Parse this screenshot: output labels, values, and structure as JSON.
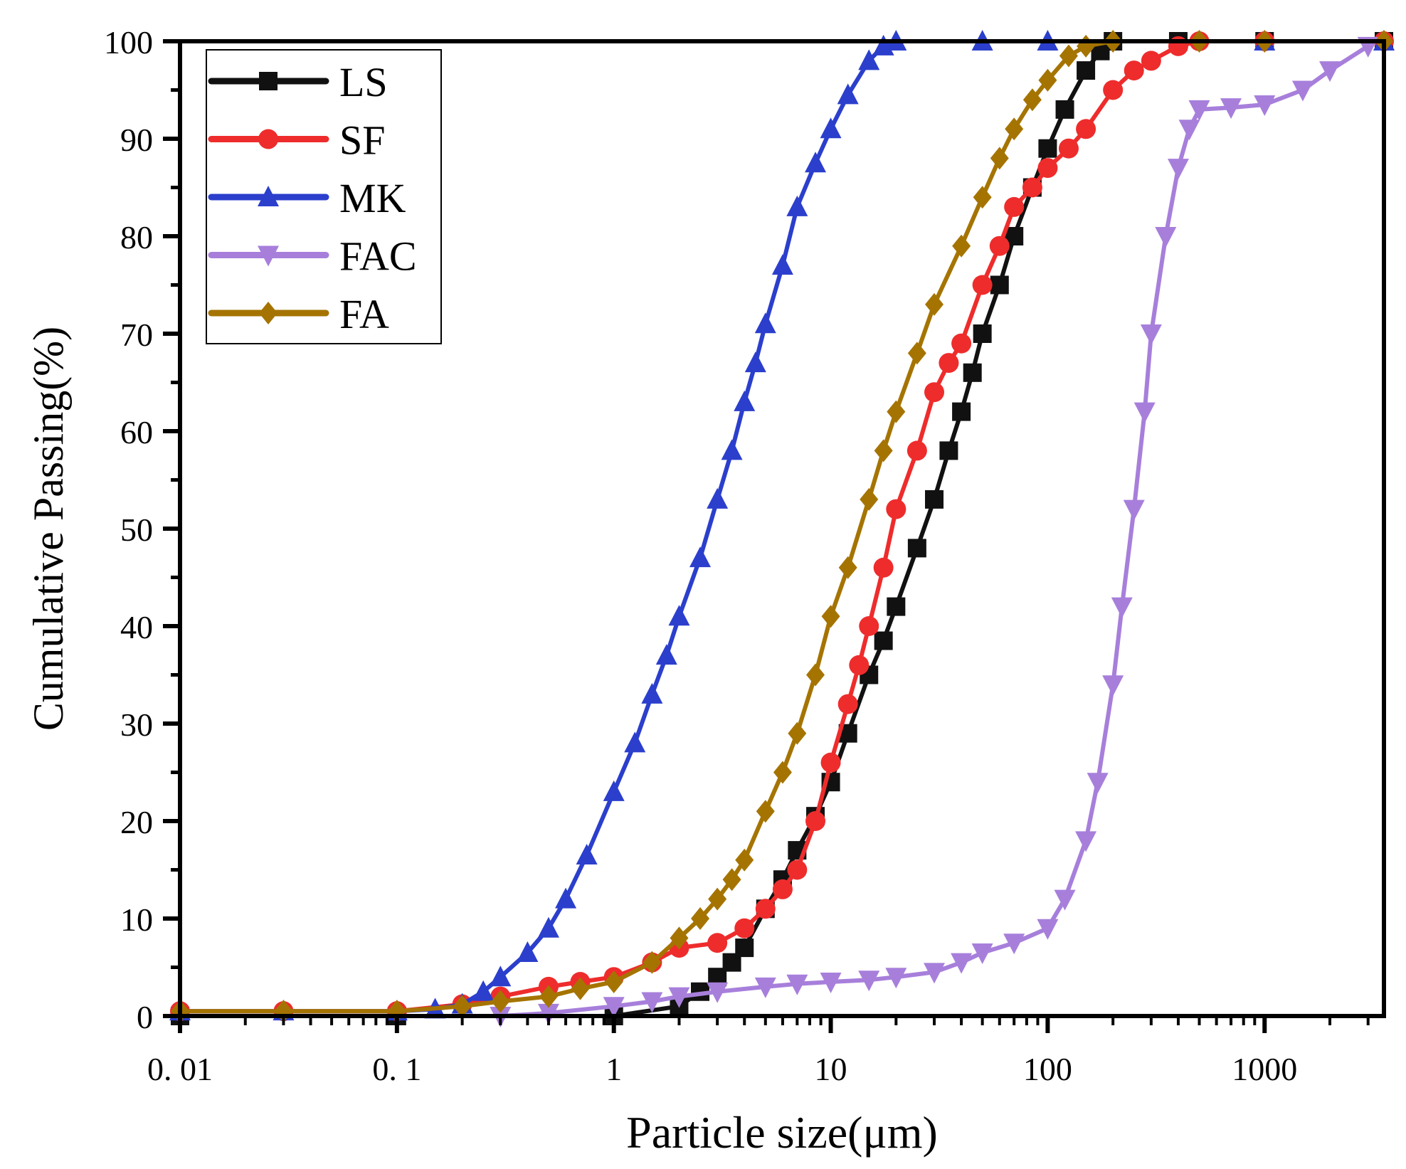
{
  "chart_data": {
    "type": "line",
    "title": "",
    "xlabel": "Particle size(μm)",
    "ylabel": "Cumulative Passing(%)",
    "xscale": "log",
    "xlim": [
      0.01,
      3550
    ],
    "ylim": [
      0,
      100
    ],
    "x_ticks": [
      0.01,
      0.1,
      1,
      10,
      100,
      1000
    ],
    "x_tick_labels": [
      "0. 01",
      "0. 1",
      "1",
      "10",
      "100",
      "1000"
    ],
    "y_ticks": [
      0,
      10,
      20,
      30,
      40,
      50,
      60,
      70,
      80,
      90,
      100
    ],
    "y_tick_labels": [
      "0",
      "10",
      "20",
      "30",
      "40",
      "50",
      "60",
      "70",
      "80",
      "90",
      "100"
    ],
    "grid": false,
    "legend_position": "top-left",
    "series": [
      {
        "name": "LS",
        "color": "#111111",
        "marker": "square",
        "points": [
          [
            0.01,
            0
          ],
          [
            0.1,
            0
          ],
          [
            1,
            0
          ],
          [
            2,
            1
          ],
          [
            2.5,
            2.5
          ],
          [
            3,
            4
          ],
          [
            3.5,
            5.5
          ],
          [
            4,
            7
          ],
          [
            5,
            11
          ],
          [
            6,
            14
          ],
          [
            7,
            17
          ],
          [
            8.5,
            20.5
          ],
          [
            10,
            24
          ],
          [
            12,
            29
          ],
          [
            15,
            35
          ],
          [
            17.5,
            38.5
          ],
          [
            20,
            42
          ],
          [
            25,
            48
          ],
          [
            30,
            53
          ],
          [
            35,
            58
          ],
          [
            40,
            62
          ],
          [
            45,
            66
          ],
          [
            50,
            70
          ],
          [
            60,
            75
          ],
          [
            70,
            80
          ],
          [
            85,
            85
          ],
          [
            100,
            89
          ],
          [
            120,
            93
          ],
          [
            150,
            97
          ],
          [
            175,
            99
          ],
          [
            200,
            100
          ],
          [
            400,
            100
          ],
          [
            1000,
            100
          ],
          [
            3550,
            100
          ]
        ]
      },
      {
        "name": "SF",
        "color": "#ee2c2c",
        "marker": "circle",
        "points": [
          [
            0.01,
            0.5
          ],
          [
            0.03,
            0.5
          ],
          [
            0.1,
            0.5
          ],
          [
            0.2,
            1.2
          ],
          [
            0.3,
            2
          ],
          [
            0.5,
            3
          ],
          [
            0.7,
            3.5
          ],
          [
            1,
            4
          ],
          [
            1.5,
            5.5
          ],
          [
            2,
            7
          ],
          [
            3,
            7.5
          ],
          [
            4,
            9
          ],
          [
            5,
            11
          ],
          [
            6,
            13
          ],
          [
            7,
            15
          ],
          [
            8.5,
            20
          ],
          [
            10,
            26
          ],
          [
            12,
            32
          ],
          [
            13.5,
            36
          ],
          [
            15,
            40
          ],
          [
            17.5,
            46
          ],
          [
            20,
            52
          ],
          [
            25,
            58
          ],
          [
            30,
            64
          ],
          [
            35,
            67
          ],
          [
            40,
            69
          ],
          [
            50,
            75
          ],
          [
            60,
            79
          ],
          [
            70,
            83
          ],
          [
            85,
            85
          ],
          [
            100,
            87
          ],
          [
            125,
            89
          ],
          [
            150,
            91
          ],
          [
            200,
            95
          ],
          [
            250,
            97
          ],
          [
            300,
            98
          ],
          [
            400,
            99.5
          ],
          [
            500,
            100
          ],
          [
            1000,
            100
          ],
          [
            3550,
            100
          ]
        ]
      },
      {
        "name": "MK",
        "color": "#2b3fcc",
        "marker": "triangle-up",
        "points": [
          [
            0.01,
            0.5
          ],
          [
            0.03,
            0.5
          ],
          [
            0.1,
            0.5
          ],
          [
            0.15,
            0.7
          ],
          [
            0.2,
            1.2
          ],
          [
            0.25,
            2.5
          ],
          [
            0.3,
            4
          ],
          [
            0.4,
            6.5
          ],
          [
            0.5,
            9
          ],
          [
            0.6,
            12
          ],
          [
            0.75,
            16.5
          ],
          [
            1,
            23
          ],
          [
            1.25,
            28
          ],
          [
            1.5,
            33
          ],
          [
            1.75,
            37
          ],
          [
            2,
            41
          ],
          [
            2.5,
            47
          ],
          [
            3,
            53
          ],
          [
            3.5,
            58
          ],
          [
            4,
            63
          ],
          [
            4.5,
            67
          ],
          [
            5,
            71
          ],
          [
            6,
            77
          ],
          [
            7,
            83
          ],
          [
            8.5,
            87.5
          ],
          [
            10,
            91
          ],
          [
            12,
            94.5
          ],
          [
            15,
            98
          ],
          [
            17.5,
            99.5
          ],
          [
            20,
            100
          ],
          [
            50,
            100
          ],
          [
            100,
            100
          ],
          [
            1000,
            100
          ],
          [
            3550,
            100
          ]
        ]
      },
      {
        "name": "FAC",
        "color": "#a77fdb",
        "marker": "triangle-down",
        "points": [
          [
            0.3,
            0
          ],
          [
            0.5,
            0.3
          ],
          [
            1,
            1
          ],
          [
            1.5,
            1.5
          ],
          [
            2,
            2
          ],
          [
            3,
            2.5
          ],
          [
            5,
            3
          ],
          [
            7,
            3.3
          ],
          [
            10,
            3.5
          ],
          [
            15,
            3.7
          ],
          [
            20,
            4
          ],
          [
            30,
            4.5
          ],
          [
            40,
            5.5
          ],
          [
            50,
            6.5
          ],
          [
            70,
            7.5
          ],
          [
            100,
            9
          ],
          [
            120,
            12
          ],
          [
            150,
            18
          ],
          [
            170,
            24
          ],
          [
            200,
            34
          ],
          [
            220,
            42
          ],
          [
            250,
            52
          ],
          [
            280,
            62
          ],
          [
            300,
            70
          ],
          [
            350,
            80
          ],
          [
            400,
            87
          ],
          [
            450,
            91
          ],
          [
            500,
            93
          ],
          [
            700,
            93.2
          ],
          [
            1000,
            93.5
          ],
          [
            1500,
            95
          ],
          [
            2000,
            97
          ],
          [
            3000,
            99.5
          ]
        ]
      },
      {
        "name": "FA",
        "color": "#a57400",
        "marker": "diamond",
        "points": [
          [
            0.01,
            0.5
          ],
          [
            0.03,
            0.5
          ],
          [
            0.1,
            0.5
          ],
          [
            0.2,
            1
          ],
          [
            0.3,
            1.5
          ],
          [
            0.5,
            2
          ],
          [
            0.7,
            2.8
          ],
          [
            1,
            3.5
          ],
          [
            1.5,
            5.5
          ],
          [
            2,
            8
          ],
          [
            2.5,
            10
          ],
          [
            3,
            12
          ],
          [
            3.5,
            14
          ],
          [
            4,
            16
          ],
          [
            5,
            21
          ],
          [
            6,
            25
          ],
          [
            7,
            29
          ],
          [
            8.5,
            35
          ],
          [
            10,
            41
          ],
          [
            12,
            46
          ],
          [
            15,
            53
          ],
          [
            17.5,
            58
          ],
          [
            20,
            62
          ],
          [
            25,
            68
          ],
          [
            30,
            73
          ],
          [
            40,
            79
          ],
          [
            50,
            84
          ],
          [
            60,
            88
          ],
          [
            70,
            91
          ],
          [
            85,
            94
          ],
          [
            100,
            96
          ],
          [
            125,
            98.5
          ],
          [
            150,
            99.5
          ],
          [
            200,
            100
          ],
          [
            500,
            100
          ],
          [
            1000,
            100
          ],
          [
            3550,
            100
          ]
        ]
      }
    ]
  }
}
